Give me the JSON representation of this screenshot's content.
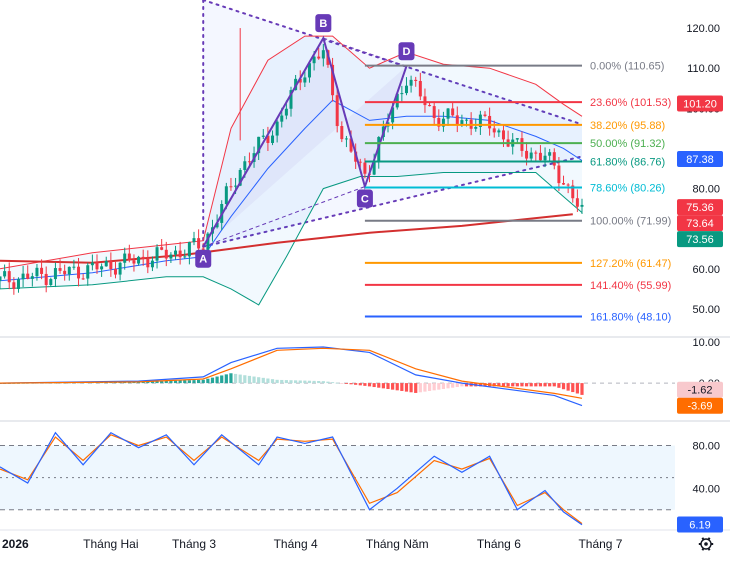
{
  "chart_data": {
    "type": "candlestick",
    "x_axis": {
      "labels": [
        "2026",
        "Tháng Hai",
        "Tháng 3",
        "Tháng 4",
        "Tháng Năm",
        "Tháng 6",
        "Tháng 7"
      ],
      "positions_day_index": [
        0,
        24,
        42,
        64,
        86,
        108,
        130
      ]
    },
    "main_panel": {
      "y_ticks": [
        "120.00",
        "110.00",
        "100.00",
        "80.00",
        "60.00",
        "50.00"
      ],
      "y_tick_values": [
        120,
        110,
        100,
        80,
        60,
        50
      ],
      "ylim": [
        43,
        127
      ],
      "price_badges": [
        {
          "text": "101.20",
          "value": 101.2,
          "color": "#f23645"
        },
        {
          "text": "87.38",
          "value": 87.38,
          "color": "#2962ff"
        },
        {
          "text": "75.36",
          "value": 75.36,
          "color": "#f23645"
        },
        {
          "text": "73.64",
          "value": 73.64,
          "color": "#f23645"
        },
        {
          "text": "73.56",
          "value": 73.56,
          "color": "#089981"
        }
      ],
      "abcd_pattern": {
        "points": [
          {
            "label": "A",
            "day": 44,
            "price": 65.5
          },
          {
            "label": "B",
            "day": 70,
            "price": 117.5
          },
          {
            "label": "C",
            "day": 79,
            "price": 80.5
          },
          {
            "label": "D",
            "day": 88,
            "price": 110.5
          }
        ],
        "upper_line": {
          "from": {
            "day": 44,
            "price": 127
          },
          "to": {
            "day": 126,
            "price": 96
          }
        },
        "lower_line": {
          "from": {
            "day": 44,
            "price": 65.5
          },
          "to": {
            "day": 126,
            "price": 88
          }
        }
      },
      "fib_retracement": {
        "start_day": 79,
        "end_day": 126,
        "levels": [
          {
            "label": "0.00% (110.65)",
            "value": 110.65,
            "color": "#787b86"
          },
          {
            "label": "23.60% (101.53)",
            "value": 101.53,
            "color": "#f23645"
          },
          {
            "label": "38.20% (95.88)",
            "value": 95.88,
            "color": "#ff9800"
          },
          {
            "label": "50.00% (91.32)",
            "value": 91.32,
            "color": "#4caf50"
          },
          {
            "label": "61.80% (86.76)",
            "value": 86.76,
            "color": "#089981"
          },
          {
            "label": "78.60% (80.26)",
            "value": 80.26,
            "color": "#00bcd4"
          },
          {
            "label": "100.00% (71.99)",
            "value": 71.99,
            "color": "#787b86"
          },
          {
            "label": "127.20% (61.47)",
            "value": 61.47,
            "color": "#ff9800"
          },
          {
            "label": "141.40% (55.99)",
            "value": 55.99,
            "color": "#f23645"
          },
          {
            "label": "161.80% (48.10)",
            "value": 48.1,
            "color": "#2962ff"
          }
        ]
      },
      "ma_long": [
        [
          0,
          62
        ],
        [
          20,
          61.5
        ],
        [
          40,
          63.5
        ],
        [
          60,
          66.5
        ],
        [
          80,
          69
        ],
        [
          100,
          70.7
        ],
        [
          124,
          73.6
        ]
      ]
    },
    "macd_panel": {
      "y_ticks": [
        "10.00",
        "0.00"
      ],
      "y_tick_values": [
        10,
        0
      ],
      "ylim": [
        -9,
        11
      ],
      "badges": [
        {
          "text": "-1.62",
          "value": -1.62,
          "color": "#f8c9cd",
          "text_color": "#131722"
        },
        {
          "text": "-3.69",
          "value": -3.69,
          "color": "#ff6d00",
          "text_color": "#ffffff"
        }
      ],
      "macd_line": [
        [
          0,
          0
        ],
        [
          30,
          0.5
        ],
        [
          44,
          1.5
        ],
        [
          50,
          5
        ],
        [
          60,
          8.5
        ],
        [
          70,
          8.8
        ],
        [
          80,
          7.5
        ],
        [
          90,
          2
        ],
        [
          100,
          0
        ],
        [
          110,
          -1.5
        ],
        [
          120,
          -3
        ],
        [
          126,
          -5.5
        ]
      ],
      "signal_line": [
        [
          0,
          0
        ],
        [
          30,
          0.3
        ],
        [
          44,
          1
        ],
        [
          50,
          3.5
        ],
        [
          60,
          8
        ],
        [
          70,
          8.5
        ],
        [
          80,
          8
        ],
        [
          90,
          3.5
        ],
        [
          100,
          0.5
        ],
        [
          110,
          -1
        ],
        [
          120,
          -2.5
        ],
        [
          126,
          -3.7
        ]
      ]
    },
    "stoch_panel": {
      "y_ticks": [
        "80.00",
        "40.00"
      ],
      "y_tick_values": [
        80,
        40
      ],
      "ylim": [
        2,
        102
      ],
      "band": [
        20,
        80
      ],
      "badges": [
        {
          "text": "6.19",
          "value": 6.19,
          "color": "#2962ff"
        }
      ],
      "k_line": [
        [
          0,
          60
        ],
        [
          6,
          45
        ],
        [
          12,
          92
        ],
        [
          18,
          62
        ],
        [
          24,
          92
        ],
        [
          30,
          78
        ],
        [
          36,
          90
        ],
        [
          42,
          62
        ],
        [
          48,
          90
        ],
        [
          56,
          62
        ],
        [
          60,
          88
        ],
        [
          66,
          82
        ],
        [
          72,
          88
        ],
        [
          80,
          20
        ],
        [
          86,
          40
        ],
        [
          94,
          70
        ],
        [
          100,
          55
        ],
        [
          106,
          70
        ],
        [
          112,
          20
        ],
        [
          118,
          38
        ],
        [
          122,
          18
        ],
        [
          126,
          6
        ]
      ],
      "d_line": [
        [
          0,
          58
        ],
        [
          6,
          48
        ],
        [
          12,
          88
        ],
        [
          18,
          66
        ],
        [
          24,
          90
        ],
        [
          30,
          80
        ],
        [
          36,
          88
        ],
        [
          42,
          66
        ],
        [
          48,
          88
        ],
        [
          56,
          66
        ],
        [
          60,
          86
        ],
        [
          66,
          84
        ],
        [
          72,
          86
        ],
        [
          80,
          26
        ],
        [
          86,
          36
        ],
        [
          94,
          66
        ],
        [
          100,
          58
        ],
        [
          106,
          68
        ],
        [
          112,
          24
        ],
        [
          118,
          36
        ],
        [
          122,
          20
        ],
        [
          126,
          7
        ]
      ]
    }
  }
}
